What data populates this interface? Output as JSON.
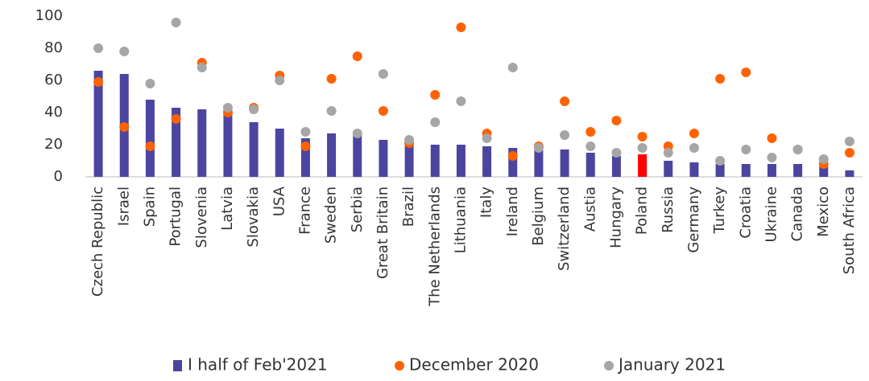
{
  "chart_data": {
    "type": "bar",
    "categories": [
      "Czech Republic",
      "Israel",
      "Spain",
      "Portugal",
      "Slovenia",
      "Latvia",
      "Slovakia",
      "USA",
      "France",
      "Sweden",
      "Serbia",
      "Great Britain",
      "Brazil",
      "The Netherlands",
      "Lithuania",
      "Italy",
      "Ireland",
      "Belgium",
      "Switzerland",
      "Austia",
      "Hungary",
      "Poland",
      "Russia",
      "Germany",
      "Turkey",
      "Croatia",
      "Ukraine",
      "Canada",
      "Mexico",
      "South Africa"
    ],
    "series": [
      {
        "name": "I half of Feb'2021",
        "kind": "bar",
        "color": "#4b45a0",
        "point_colors": [
          "#4b45a0",
          "#4b45a0",
          "#4b45a0",
          "#4b45a0",
          "#4b45a0",
          "#4b45a0",
          "#4b45a0",
          "#4b45a0",
          "#4b45a0",
          "#4b45a0",
          "#4b45a0",
          "#4b45a0",
          "#4b45a0",
          "#4b45a0",
          "#4b45a0",
          "#4b45a0",
          "#4b45a0",
          "#4b45a0",
          "#4b45a0",
          "#4b45a0",
          "#4b45a0",
          "#ff0000",
          "#4b45a0",
          "#4b45a0",
          "#4b45a0",
          "#4b45a0",
          "#4b45a0",
          "#4b45a0",
          "#4b45a0",
          "#4b45a0"
        ],
        "values": [
          66,
          64,
          48,
          43,
          42,
          39,
          34,
          30,
          24,
          27,
          26,
          23,
          20,
          20,
          20,
          19,
          18,
          17,
          17,
          15,
          13,
          14,
          10,
          9,
          8,
          8,
          8,
          8,
          7,
          4
        ]
      },
      {
        "name": "December 2020",
        "kind": "dot",
        "color": "#ff6200",
        "values": [
          59,
          31,
          19,
          36,
          71,
          40,
          43,
          63,
          19,
          61,
          75,
          41,
          21,
          51,
          93,
          27,
          13,
          19,
          47,
          28,
          35,
          25,
          19,
          27,
          61,
          65,
          24,
          17,
          8,
          15
        ]
      },
      {
        "name": "January 2021",
        "kind": "dot",
        "color": "#a6a6a6",
        "values": [
          80,
          78,
          58,
          96,
          68,
          43,
          42,
          60,
          28,
          41,
          27,
          64,
          23,
          34,
          47,
          24,
          68,
          18,
          26,
          19,
          15,
          18,
          15,
          18,
          10,
          17,
          12,
          17,
          11,
          22
        ]
      }
    ],
    "ylim": [
      0,
      100
    ],
    "yticks": [
      0,
      20,
      40,
      60,
      80,
      100
    ],
    "grid": false,
    "legend": "bottom"
  }
}
